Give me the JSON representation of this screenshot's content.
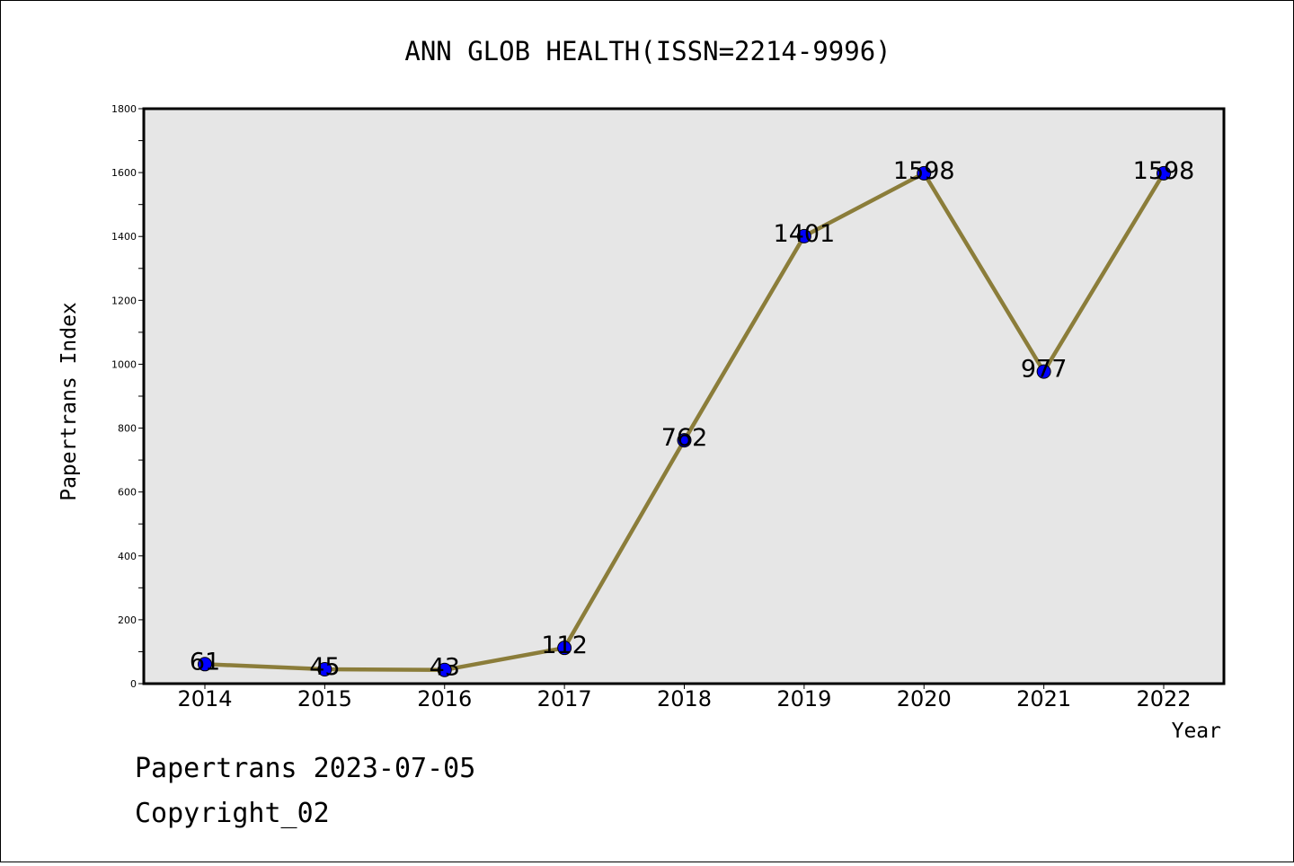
{
  "chart_data": {
    "type": "line",
    "title": "ANN GLOB HEALTH(ISSN=2214-9996)",
    "xlabel": "Year",
    "ylabel": "Papertrans Index",
    "categories": [
      "2014",
      "2015",
      "2016",
      "2017",
      "2018",
      "2019",
      "2020",
      "2021",
      "2022"
    ],
    "values": [
      61,
      45,
      43,
      112,
      762,
      1401,
      1598,
      977,
      1598
    ],
    "data_labels": [
      "61",
      "45",
      "43",
      "112",
      "762",
      "1401",
      "1598",
      "977",
      "1598"
    ],
    "ylim": [
      0,
      1800
    ],
    "yticks": [
      0,
      200,
      400,
      600,
      800,
      1000,
      1200,
      1400,
      1600,
      1800
    ],
    "grid": false,
    "colors": {
      "line": "#8b7d3a",
      "marker": "#0000ff",
      "plot_background": "#e6e6e6"
    }
  },
  "footer": {
    "line1": "Papertrans 2023-07-05",
    "line2": "Copyright_02"
  }
}
